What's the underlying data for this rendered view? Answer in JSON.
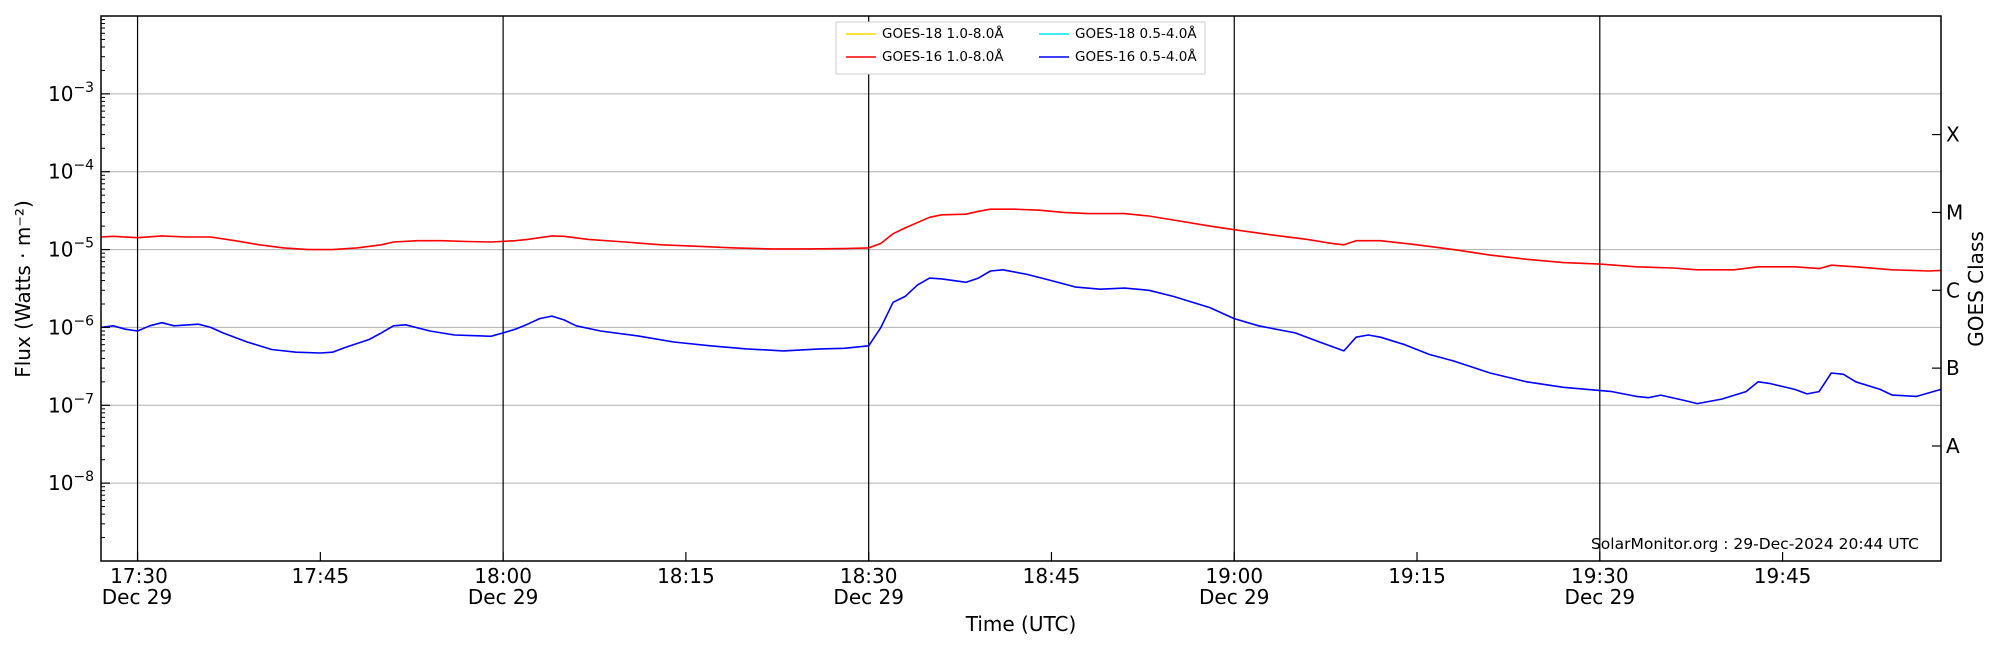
{
  "chart_data": {
    "type": "line",
    "title": "",
    "xlabel": "Time (UTC)",
    "ylabel": "Flux (Watts · m⁻²)",
    "y2label": "GOES Class",
    "yscale": "log",
    "ylim": [
      1e-09,
      0.01
    ],
    "xlim": [
      "17:27",
      "19:58"
    ],
    "grid": "horizontal at decades",
    "legend_position": "top-center",
    "credit": "SolarMonitor.org : 29-Dec-2024 20:44 UTC",
    "x_ticks": [
      {
        "time": "17:30",
        "date": "Dec 29"
      },
      {
        "time": "17:45",
        "date": ""
      },
      {
        "time": "18:00",
        "date": "Dec 29"
      },
      {
        "time": "18:15",
        "date": ""
      },
      {
        "time": "18:30",
        "date": "Dec 29"
      },
      {
        "time": "18:45",
        "date": ""
      },
      {
        "time": "19:00",
        "date": "Dec 29"
      },
      {
        "time": "19:15",
        "date": ""
      },
      {
        "time": "19:30",
        "date": "Dec 29"
      },
      {
        "time": "19:45",
        "date": ""
      }
    ],
    "y_ticks": [
      {
        "value": 1e-08,
        "base": "10",
        "exp": "−8"
      },
      {
        "value": 1e-07,
        "base": "10",
        "exp": "−7"
      },
      {
        "value": 1e-06,
        "base": "10",
        "exp": "−6"
      },
      {
        "value": 1e-05,
        "base": "10",
        "exp": "−5"
      },
      {
        "value": 0.0001,
        "base": "10",
        "exp": "−4"
      },
      {
        "value": 0.001,
        "base": "10",
        "exp": "−3"
      }
    ],
    "goes_classes": [
      {
        "label": "A",
        "value": 3e-08
      },
      {
        "label": "B",
        "value": 3e-07
      },
      {
        "label": "C",
        "value": 3e-06
      },
      {
        "label": "M",
        "value": 3e-05
      },
      {
        "label": "X",
        "value": 0.0003
      }
    ],
    "vlines": [
      "17:30",
      "18:00",
      "18:30",
      "19:00",
      "19:30"
    ],
    "legend": [
      {
        "name": "GOES-18 1.0-8.0Å",
        "color": "#ffd700"
      },
      {
        "name": "GOES-18 0.5-4.0Å",
        "color": "#00e5ee"
      },
      {
        "name": "GOES-16 1.0-8.0Å",
        "color": "#ff0000"
      },
      {
        "name": "GOES-16 0.5-4.0Å",
        "color": "#0000ff"
      }
    ],
    "series": [
      {
        "name": "GOES-16 1.0-8.0Å",
        "color": "#ff0000",
        "points": [
          [
            "17:27",
            1.45e-05
          ],
          [
            "17:28",
            1.48e-05
          ],
          [
            "17:30",
            1.42e-05
          ],
          [
            "17:32",
            1.5e-05
          ],
          [
            "17:34",
            1.45e-05
          ],
          [
            "17:36",
            1.45e-05
          ],
          [
            "17:38",
            1.3e-05
          ],
          [
            "17:40",
            1.15e-05
          ],
          [
            "17:42",
            1.05e-05
          ],
          [
            "17:44",
            1e-05
          ],
          [
            "17:46",
            1e-05
          ],
          [
            "17:48",
            1.05e-05
          ],
          [
            "17:50",
            1.15e-05
          ],
          [
            "17:51",
            1.25e-05
          ],
          [
            "17:53",
            1.3e-05
          ],
          [
            "17:55",
            1.3e-05
          ],
          [
            "17:57",
            1.27e-05
          ],
          [
            "17:59",
            1.25e-05
          ],
          [
            "18:01",
            1.3e-05
          ],
          [
            "18:02",
            1.35e-05
          ],
          [
            "18:04",
            1.5e-05
          ],
          [
            "18:05",
            1.48e-05
          ],
          [
            "18:07",
            1.35e-05
          ],
          [
            "18:10",
            1.25e-05
          ],
          [
            "18:13",
            1.15e-05
          ],
          [
            "18:16",
            1.1e-05
          ],
          [
            "18:19",
            1.05e-05
          ],
          [
            "18:22",
            1.02e-05
          ],
          [
            "18:25",
            1.02e-05
          ],
          [
            "18:28",
            1.03e-05
          ],
          [
            "18:30",
            1.05e-05
          ],
          [
            "18:31",
            1.2e-05
          ],
          [
            "18:32",
            1.6e-05
          ],
          [
            "18:33",
            1.9e-05
          ],
          [
            "18:35",
            2.6e-05
          ],
          [
            "18:36",
            2.8e-05
          ],
          [
            "18:38",
            2.85e-05
          ],
          [
            "18:39",
            3.1e-05
          ],
          [
            "18:40",
            3.3e-05
          ],
          [
            "18:42",
            3.3e-05
          ],
          [
            "18:44",
            3.2e-05
          ],
          [
            "18:46",
            3e-05
          ],
          [
            "18:48",
            2.9e-05
          ],
          [
            "18:51",
            2.9e-05
          ],
          [
            "18:53",
            2.7e-05
          ],
          [
            "18:55",
            2.4e-05
          ],
          [
            "18:58",
            2e-05
          ],
          [
            "19:00",
            1.8e-05
          ],
          [
            "19:03",
            1.55e-05
          ],
          [
            "19:06",
            1.35e-05
          ],
          [
            "19:08",
            1.2e-05
          ],
          [
            "19:09",
            1.15e-05
          ],
          [
            "19:10",
            1.3e-05
          ],
          [
            "19:12",
            1.3e-05
          ],
          [
            "19:15",
            1.15e-05
          ],
          [
            "19:18",
            1e-05
          ],
          [
            "19:21",
            8.5e-06
          ],
          [
            "19:24",
            7.5e-06
          ],
          [
            "19:27",
            6.8e-06
          ],
          [
            "19:30",
            6.5e-06
          ],
          [
            "19:33",
            6e-06
          ],
          [
            "19:36",
            5.8e-06
          ],
          [
            "19:38",
            5.5e-06
          ],
          [
            "19:41",
            5.5e-06
          ],
          [
            "19:43",
            6e-06
          ],
          [
            "19:46",
            6e-06
          ],
          [
            "19:48",
            5.7e-06
          ],
          [
            "19:49",
            6.3e-06
          ],
          [
            "19:51",
            6e-06
          ],
          [
            "19:54",
            5.5e-06
          ],
          [
            "19:57",
            5.3e-06
          ],
          [
            "19:58",
            5.4e-06
          ]
        ]
      },
      {
        "name": "GOES-16 0.5-4.0Å",
        "color": "#0000ff",
        "points": [
          [
            "17:27",
            1e-06
          ],
          [
            "17:28",
            1.05e-06
          ],
          [
            "17:29",
            9.5e-07
          ],
          [
            "17:30",
            9e-07
          ],
          [
            "17:31",
            1.05e-06
          ],
          [
            "17:32",
            1.15e-06
          ],
          [
            "17:33",
            1.05e-06
          ],
          [
            "17:35",
            1.1e-06
          ],
          [
            "17:36",
            1e-06
          ],
          [
            "17:37",
            8.5e-07
          ],
          [
            "17:39",
            6.5e-07
          ],
          [
            "17:41",
            5.2e-07
          ],
          [
            "17:43",
            4.8e-07
          ],
          [
            "17:45",
            4.7e-07
          ],
          [
            "17:46",
            4.8e-07
          ],
          [
            "17:47",
            5.5e-07
          ],
          [
            "17:49",
            7e-07
          ],
          [
            "17:50",
            8.5e-07
          ],
          [
            "17:51",
            1.05e-06
          ],
          [
            "17:52",
            1.08e-06
          ],
          [
            "17:54",
            9e-07
          ],
          [
            "17:56",
            8e-07
          ],
          [
            "17:58",
            7.8e-07
          ],
          [
            "17:59",
            7.7e-07
          ],
          [
            "18:00",
            8.5e-07
          ],
          [
            "18:01",
            9.5e-07
          ],
          [
            "18:02",
            1.1e-06
          ],
          [
            "18:03",
            1.3e-06
          ],
          [
            "18:04",
            1.4e-06
          ],
          [
            "18:05",
            1.25e-06
          ],
          [
            "18:06",
            1.05e-06
          ],
          [
            "18:08",
            9e-07
          ],
          [
            "18:11",
            7.8e-07
          ],
          [
            "18:14",
            6.5e-07
          ],
          [
            "18:17",
            5.8e-07
          ],
          [
            "18:20",
            5.3e-07
          ],
          [
            "18:23",
            5e-07
          ],
          [
            "18:26",
            5.3e-07
          ],
          [
            "18:28",
            5.4e-07
          ],
          [
            "18:30",
            5.8e-07
          ],
          [
            "18:31",
            1e-06
          ],
          [
            "18:32",
            2.1e-06
          ],
          [
            "18:33",
            2.5e-06
          ],
          [
            "18:34",
            3.5e-06
          ],
          [
            "18:35",
            4.3e-06
          ],
          [
            "18:36",
            4.2e-06
          ],
          [
            "18:38",
            3.8e-06
          ],
          [
            "18:39",
            4.3e-06
          ],
          [
            "18:40",
            5.3e-06
          ],
          [
            "18:41",
            5.5e-06
          ],
          [
            "18:43",
            4.8e-06
          ],
          [
            "18:45",
            4e-06
          ],
          [
            "18:47",
            3.3e-06
          ],
          [
            "18:49",
            3.1e-06
          ],
          [
            "18:51",
            3.2e-06
          ],
          [
            "18:53",
            3e-06
          ],
          [
            "18:55",
            2.5e-06
          ],
          [
            "18:58",
            1.8e-06
          ],
          [
            "19:00",
            1.3e-06
          ],
          [
            "19:02",
            1.05e-06
          ],
          [
            "19:05",
            8.5e-07
          ],
          [
            "19:07",
            6.5e-07
          ],
          [
            "19:09",
            5e-07
          ],
          [
            "19:10",
            7.5e-07
          ],
          [
            "19:11",
            8e-07
          ],
          [
            "19:12",
            7.5e-07
          ],
          [
            "19:14",
            6e-07
          ],
          [
            "19:16",
            4.5e-07
          ],
          [
            "19:18",
            3.7e-07
          ],
          [
            "19:21",
            2.6e-07
          ],
          [
            "19:24",
            2e-07
          ],
          [
            "19:27",
            1.7e-07
          ],
          [
            "19:29",
            1.6e-07
          ],
          [
            "19:31",
            1.5e-07
          ],
          [
            "19:33",
            1.3e-07
          ],
          [
            "19:34",
            1.25e-07
          ],
          [
            "19:35",
            1.35e-07
          ],
          [
            "19:37",
            1.15e-07
          ],
          [
            "19:38",
            1.05e-07
          ],
          [
            "19:40",
            1.2e-07
          ],
          [
            "19:42",
            1.5e-07
          ],
          [
            "19:43",
            2e-07
          ],
          [
            "19:44",
            1.9e-07
          ],
          [
            "19:46",
            1.6e-07
          ],
          [
            "19:47",
            1.4e-07
          ],
          [
            "19:48",
            1.5e-07
          ],
          [
            "19:49",
            2.6e-07
          ],
          [
            "19:50",
            2.5e-07
          ],
          [
            "19:51",
            2e-07
          ],
          [
            "19:53",
            1.6e-07
          ],
          [
            "19:54",
            1.35e-07
          ],
          [
            "19:56",
            1.3e-07
          ],
          [
            "19:58",
            1.6e-07
          ]
        ]
      }
    ]
  }
}
